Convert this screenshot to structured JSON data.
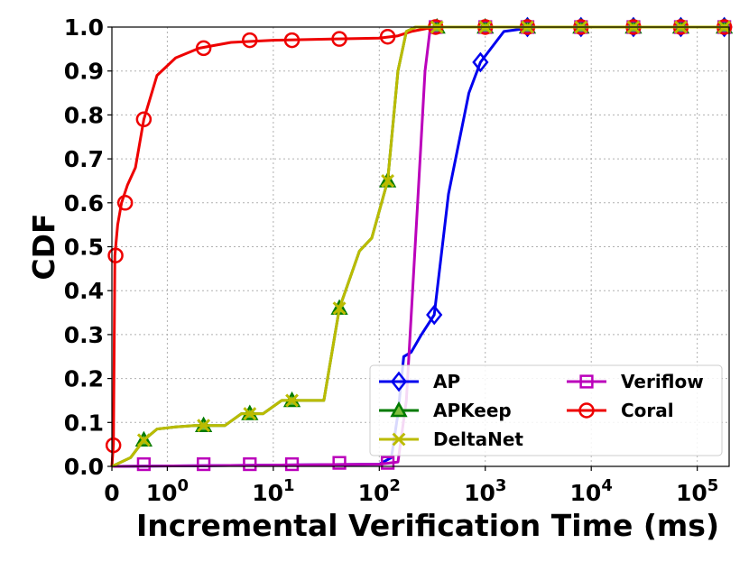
{
  "chart_data": {
    "type": "line",
    "xlabel": "Incremental Verification Time (ms)",
    "ylabel": "CDF",
    "xscale": "log",
    "xlim": [
      0.3,
      200000
    ],
    "ylim": [
      0,
      1.0
    ],
    "grid": true,
    "legend_position": "lower-right",
    "x_ticks": [
      {
        "value": 0.3,
        "label": "0",
        "exp": ""
      },
      {
        "value": 1,
        "label": "10",
        "exp": "0"
      },
      {
        "value": 10,
        "label": "10",
        "exp": "1"
      },
      {
        "value": 100,
        "label": "10",
        "exp": "2"
      },
      {
        "value": 1000,
        "label": "10",
        "exp": "3"
      },
      {
        "value": 10000,
        "label": "10",
        "exp": "4"
      },
      {
        "value": 100000,
        "label": "10",
        "exp": "5"
      }
    ],
    "y_ticks": [
      "0.0",
      "0.1",
      "0.2",
      "0.3",
      "0.4",
      "0.5",
      "0.6",
      "0.7",
      "0.8",
      "0.9",
      "1.0"
    ],
    "series": [
      {
        "name": "AP",
        "color": "#0000ee",
        "marker": "diamond",
        "points": [
          [
            0.3,
            0
          ],
          [
            100,
            0.005
          ],
          [
            130,
            0.02
          ],
          [
            150,
            0.12
          ],
          [
            170,
            0.25
          ],
          [
            200,
            0.26
          ],
          [
            250,
            0.3
          ],
          [
            330,
            0.345
          ],
          [
            450,
            0.62
          ],
          [
            700,
            0.85
          ],
          [
            900,
            0.92
          ],
          [
            1500,
            0.99
          ],
          [
            3000,
            1.0
          ],
          [
            200000,
            1.0
          ]
        ],
        "markers": [
          [
            330,
            0.345
          ],
          [
            900,
            0.92
          ],
          [
            2500,
            1.0
          ],
          [
            8000,
            1.0
          ],
          [
            25000,
            1.0
          ],
          [
            70000,
            1.0
          ],
          [
            180000,
            1.0
          ]
        ]
      },
      {
        "name": "APKeep",
        "color": "#007a00",
        "marker": "triangle",
        "points": [
          [
            0.3,
            0
          ],
          [
            0.45,
            0.02
          ],
          [
            0.6,
            0.06
          ],
          [
            0.8,
            0.085
          ],
          [
            1.2,
            0.09
          ],
          [
            1.8,
            0.093
          ],
          [
            3.5,
            0.093
          ],
          [
            5,
            0.12
          ],
          [
            8,
            0.12
          ],
          [
            12,
            0.15
          ],
          [
            30,
            0.15
          ],
          [
            42,
            0.36
          ],
          [
            65,
            0.49
          ],
          [
            85,
            0.52
          ],
          [
            120,
            0.65
          ],
          [
            150,
            0.9
          ],
          [
            180,
            0.99
          ],
          [
            220,
            1.0
          ],
          [
            200000,
            1.0
          ]
        ],
        "markers": [
          [
            0.6,
            0.06
          ],
          [
            2.2,
            0.093
          ],
          [
            6,
            0.12
          ],
          [
            15,
            0.15
          ],
          [
            42,
            0.36
          ],
          [
            120,
            0.65
          ],
          [
            350,
            1.0
          ],
          [
            1000,
            1.0
          ],
          [
            2500,
            1.0
          ],
          [
            8000,
            1.0
          ],
          [
            25000,
            1.0
          ],
          [
            70000,
            1.0
          ],
          [
            180000,
            1.0
          ]
        ]
      },
      {
        "name": "DeltaNet",
        "color": "#bbbb00",
        "marker": "x",
        "points": [
          [
            0.3,
            0
          ],
          [
            0.45,
            0.02
          ],
          [
            0.6,
            0.06
          ],
          [
            0.8,
            0.085
          ],
          [
            1.2,
            0.09
          ],
          [
            1.8,
            0.093
          ],
          [
            3.5,
            0.093
          ],
          [
            5,
            0.12
          ],
          [
            8,
            0.12
          ],
          [
            12,
            0.15
          ],
          [
            30,
            0.15
          ],
          [
            42,
            0.36
          ],
          [
            65,
            0.49
          ],
          [
            85,
            0.52
          ],
          [
            120,
            0.65
          ],
          [
            150,
            0.9
          ],
          [
            180,
            0.99
          ],
          [
            220,
            1.0
          ],
          [
            200000,
            1.0
          ]
        ],
        "markers": [
          [
            0.6,
            0.06
          ],
          [
            2.2,
            0.093
          ],
          [
            6,
            0.12
          ],
          [
            15,
            0.15
          ],
          [
            42,
            0.36
          ],
          [
            120,
            0.65
          ],
          [
            350,
            1.0
          ],
          [
            1000,
            1.0
          ],
          [
            2500,
            1.0
          ],
          [
            8000,
            1.0
          ],
          [
            25000,
            1.0
          ],
          [
            70000,
            1.0
          ],
          [
            180000,
            1.0
          ]
        ]
      },
      {
        "name": "Veriflow",
        "color": "#bb00bb",
        "marker": "square",
        "points": [
          [
            0.3,
            0
          ],
          [
            100,
            0.005
          ],
          [
            150,
            0.01
          ],
          [
            180,
            0.15
          ],
          [
            230,
            0.6
          ],
          [
            270,
            0.9
          ],
          [
            300,
            0.99
          ],
          [
            330,
            1.0
          ],
          [
            200000,
            1.0
          ]
        ],
        "markers": [
          [
            0.6,
            0.005
          ],
          [
            2.2,
            0.005
          ],
          [
            6,
            0.005
          ],
          [
            15,
            0.005
          ],
          [
            42,
            0.008
          ],
          [
            120,
            0.008
          ],
          [
            340,
            1.0
          ],
          [
            1000,
            1.0
          ],
          [
            2500,
            1.0
          ],
          [
            8000,
            1.0
          ],
          [
            25000,
            1.0
          ],
          [
            70000,
            1.0
          ],
          [
            180000,
            1.0
          ]
        ]
      },
      {
        "name": "Coral",
        "color": "#ee0000",
        "marker": "circle",
        "points": [
          [
            0.3,
            0
          ],
          [
            0.31,
            0.05
          ],
          [
            0.32,
            0.48
          ],
          [
            0.34,
            0.55
          ],
          [
            0.37,
            0.6
          ],
          [
            0.42,
            0.64
          ],
          [
            0.5,
            0.68
          ],
          [
            0.6,
            0.79
          ],
          [
            0.8,
            0.89
          ],
          [
            1.2,
            0.93
          ],
          [
            2,
            0.952
          ],
          [
            4,
            0.965
          ],
          [
            10,
            0.97
          ],
          [
            40,
            0.973
          ],
          [
            100,
            0.975
          ],
          [
            150,
            0.98
          ],
          [
            200,
            0.99
          ],
          [
            330,
            1.0
          ],
          [
            200000,
            1.0
          ]
        ],
        "markers": [
          [
            0.31,
            0.048
          ],
          [
            0.325,
            0.48
          ],
          [
            0.4,
            0.6
          ],
          [
            0.6,
            0.79
          ],
          [
            2.2,
            0.952
          ],
          [
            6,
            0.97
          ],
          [
            15,
            0.97
          ],
          [
            42,
            0.973
          ],
          [
            120,
            0.978
          ],
          [
            340,
            1.0
          ],
          [
            1000,
            1.0
          ],
          [
            2500,
            1.0
          ],
          [
            8000,
            1.0
          ],
          [
            25000,
            1.0
          ],
          [
            70000,
            1.0
          ],
          [
            180000,
            1.0
          ]
        ]
      }
    ],
    "legend_order": [
      0,
      3,
      1,
      4,
      2
    ]
  }
}
